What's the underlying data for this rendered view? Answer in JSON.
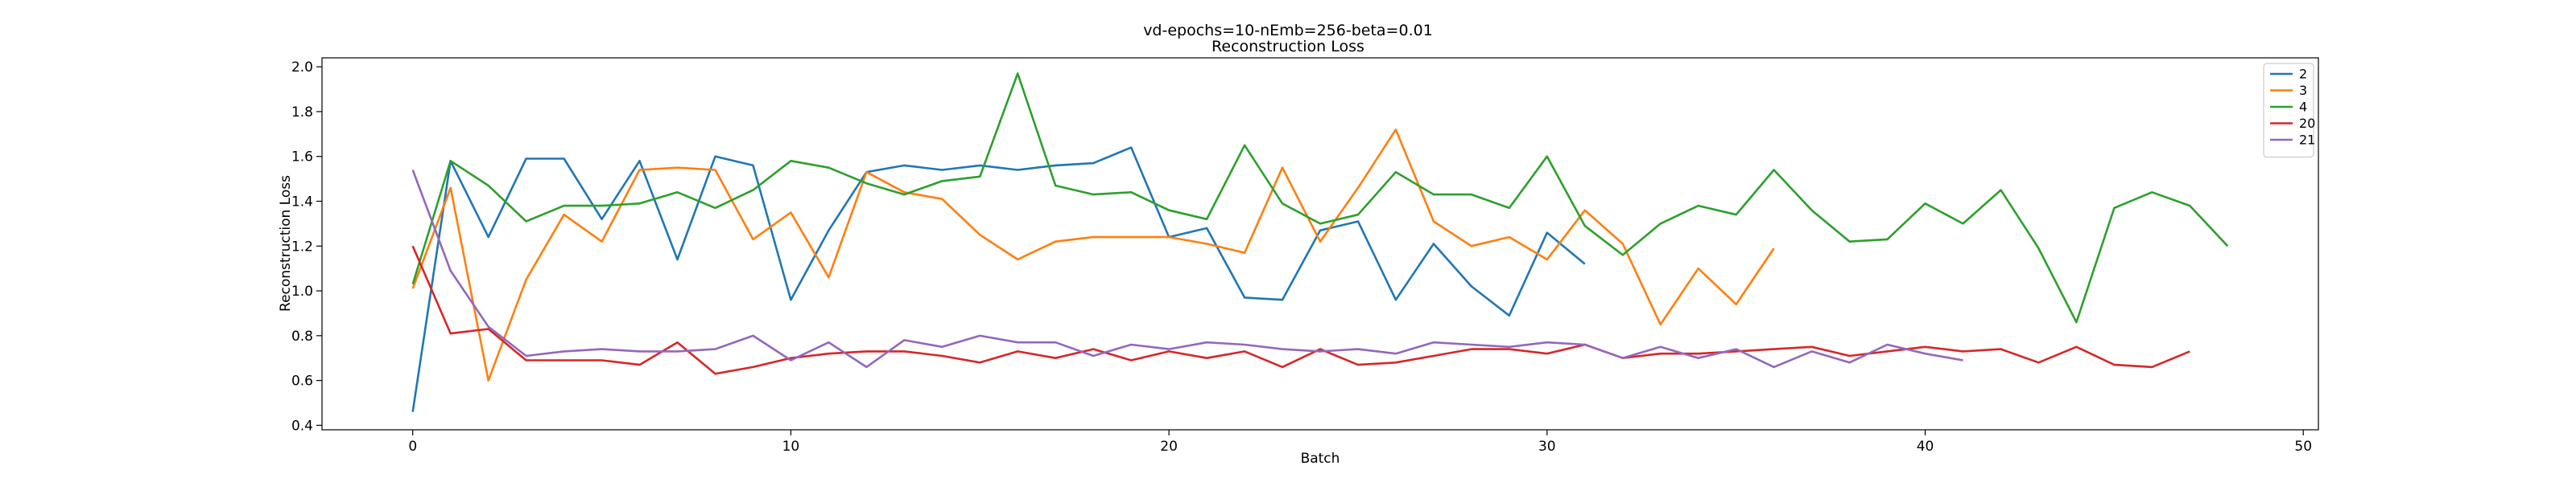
{
  "chart_data": {
    "type": "line",
    "title": "vd-epochs=10-nEmb=256-beta=0.01",
    "subtitle": "Reconstruction Loss",
    "xlabel": "Batch",
    "ylabel": "Reconstruction Loss",
    "xlim": [
      -2.4,
      50.4
    ],
    "ylim": [
      0.38,
      2.04
    ],
    "xticks": [
      0,
      10,
      20,
      30,
      40,
      50
    ],
    "yticks": [
      0.4,
      0.6,
      0.8,
      1.0,
      1.2,
      1.4,
      1.6,
      1.8,
      2.0
    ],
    "legend_position": "top-right",
    "grid": false,
    "series": [
      {
        "name": "2",
        "color": "#1f77b4",
        "x": [
          0,
          1,
          2,
          3,
          4,
          5,
          6,
          7,
          8,
          9,
          10,
          11,
          12,
          13,
          14,
          15,
          16,
          17,
          18,
          19,
          20,
          21,
          22,
          23,
          24,
          25,
          26,
          27,
          28,
          29,
          30,
          31
        ],
        "y": [
          0.46,
          1.58,
          1.24,
          1.59,
          1.59,
          1.32,
          1.58,
          1.14,
          1.6,
          1.56,
          0.96,
          1.27,
          1.53,
          1.56,
          1.54,
          1.56,
          1.54,
          1.56,
          1.57,
          1.64,
          1.24,
          1.28,
          0.97,
          0.96,
          1.27,
          1.31,
          0.96,
          1.21,
          1.02,
          0.89,
          1.26,
          1.12
        ]
      },
      {
        "name": "3",
        "color": "#ff7f0e",
        "x": [
          0,
          1,
          2,
          3,
          4,
          5,
          6,
          7,
          8,
          9,
          10,
          11,
          12,
          13,
          14,
          15,
          16,
          17,
          18,
          19,
          20,
          21,
          22,
          23,
          24,
          25,
          26,
          27,
          28,
          29,
          30,
          31,
          32,
          33,
          34,
          35,
          36
        ],
        "y": [
          1.01,
          1.46,
          0.6,
          1.05,
          1.34,
          1.22,
          1.54,
          1.55,
          1.54,
          1.23,
          1.35,
          1.06,
          1.53,
          1.44,
          1.41,
          1.25,
          1.14,
          1.22,
          1.24,
          1.24,
          1.24,
          1.21,
          1.17,
          1.55,
          1.22,
          1.46,
          1.72,
          1.31,
          1.2,
          1.24,
          1.14,
          1.36,
          1.21,
          0.85,
          1.1,
          0.94,
          1.19
        ]
      },
      {
        "name": "4",
        "color": "#2ca02c",
        "x": [
          0,
          1,
          2,
          3,
          4,
          5,
          6,
          7,
          8,
          9,
          10,
          11,
          12,
          13,
          14,
          15,
          16,
          17,
          18,
          19,
          20,
          21,
          22,
          23,
          24,
          25,
          26,
          27,
          28,
          29,
          30,
          31,
          32,
          33,
          34,
          35,
          36,
          37,
          38,
          39,
          40,
          41,
          42,
          43,
          44,
          45,
          46,
          47,
          48
        ],
        "y": [
          1.03,
          1.58,
          1.47,
          1.31,
          1.38,
          1.38,
          1.39,
          1.44,
          1.37,
          1.45,
          1.58,
          1.55,
          1.48,
          1.43,
          1.49,
          1.51,
          1.97,
          1.47,
          1.43,
          1.44,
          1.36,
          1.32,
          1.65,
          1.39,
          1.3,
          1.34,
          1.53,
          1.43,
          1.43,
          1.37,
          1.6,
          1.29,
          1.16,
          1.3,
          1.38,
          1.34,
          1.54,
          1.36,
          1.22,
          1.23,
          1.39,
          1.3,
          1.45,
          1.19,
          0.86,
          1.37,
          1.44,
          1.38,
          1.2
        ]
      },
      {
        "name": "20",
        "color": "#d62728",
        "x": [
          0,
          1,
          2,
          3,
          4,
          5,
          6,
          7,
          8,
          9,
          10,
          11,
          12,
          13,
          14,
          15,
          16,
          17,
          18,
          19,
          20,
          21,
          22,
          23,
          24,
          25,
          26,
          27,
          28,
          29,
          30,
          31,
          32,
          33,
          34,
          35,
          36,
          37,
          38,
          39,
          40,
          41,
          42,
          43,
          44,
          45,
          46,
          47
        ],
        "y": [
          1.2,
          0.81,
          0.83,
          0.69,
          0.69,
          0.69,
          0.67,
          0.77,
          0.63,
          0.66,
          0.7,
          0.72,
          0.73,
          0.73,
          0.71,
          0.68,
          0.73,
          0.7,
          0.74,
          0.69,
          0.73,
          0.7,
          0.73,
          0.66,
          0.74,
          0.67,
          0.68,
          0.71,
          0.74,
          0.74,
          0.72,
          0.76,
          0.7,
          0.72,
          0.72,
          0.73,
          0.74,
          0.75,
          0.71,
          0.73,
          0.75,
          0.73,
          0.74,
          0.68,
          0.75,
          0.67,
          0.66,
          0.73
        ]
      },
      {
        "name": "21",
        "color": "#9467bd",
        "x": [
          0,
          1,
          2,
          3,
          4,
          5,
          6,
          7,
          8,
          9,
          10,
          11,
          12,
          13,
          14,
          15,
          16,
          17,
          18,
          19,
          20,
          21,
          22,
          23,
          24,
          25,
          26,
          27,
          28,
          29,
          30,
          31,
          32,
          33,
          34,
          35,
          36,
          37,
          38,
          39,
          40,
          41
        ],
        "y": [
          1.54,
          1.09,
          0.84,
          0.71,
          0.73,
          0.74,
          0.73,
          0.73,
          0.74,
          0.8,
          0.69,
          0.77,
          0.66,
          0.78,
          0.75,
          0.8,
          0.77,
          0.77,
          0.71,
          0.76,
          0.74,
          0.77,
          0.76,
          0.74,
          0.73,
          0.74,
          0.72,
          0.77,
          0.76,
          0.75,
          0.77,
          0.76,
          0.7,
          0.75,
          0.7,
          0.74,
          0.66,
          0.73,
          0.68,
          0.76,
          0.72,
          0.69
        ]
      }
    ]
  }
}
